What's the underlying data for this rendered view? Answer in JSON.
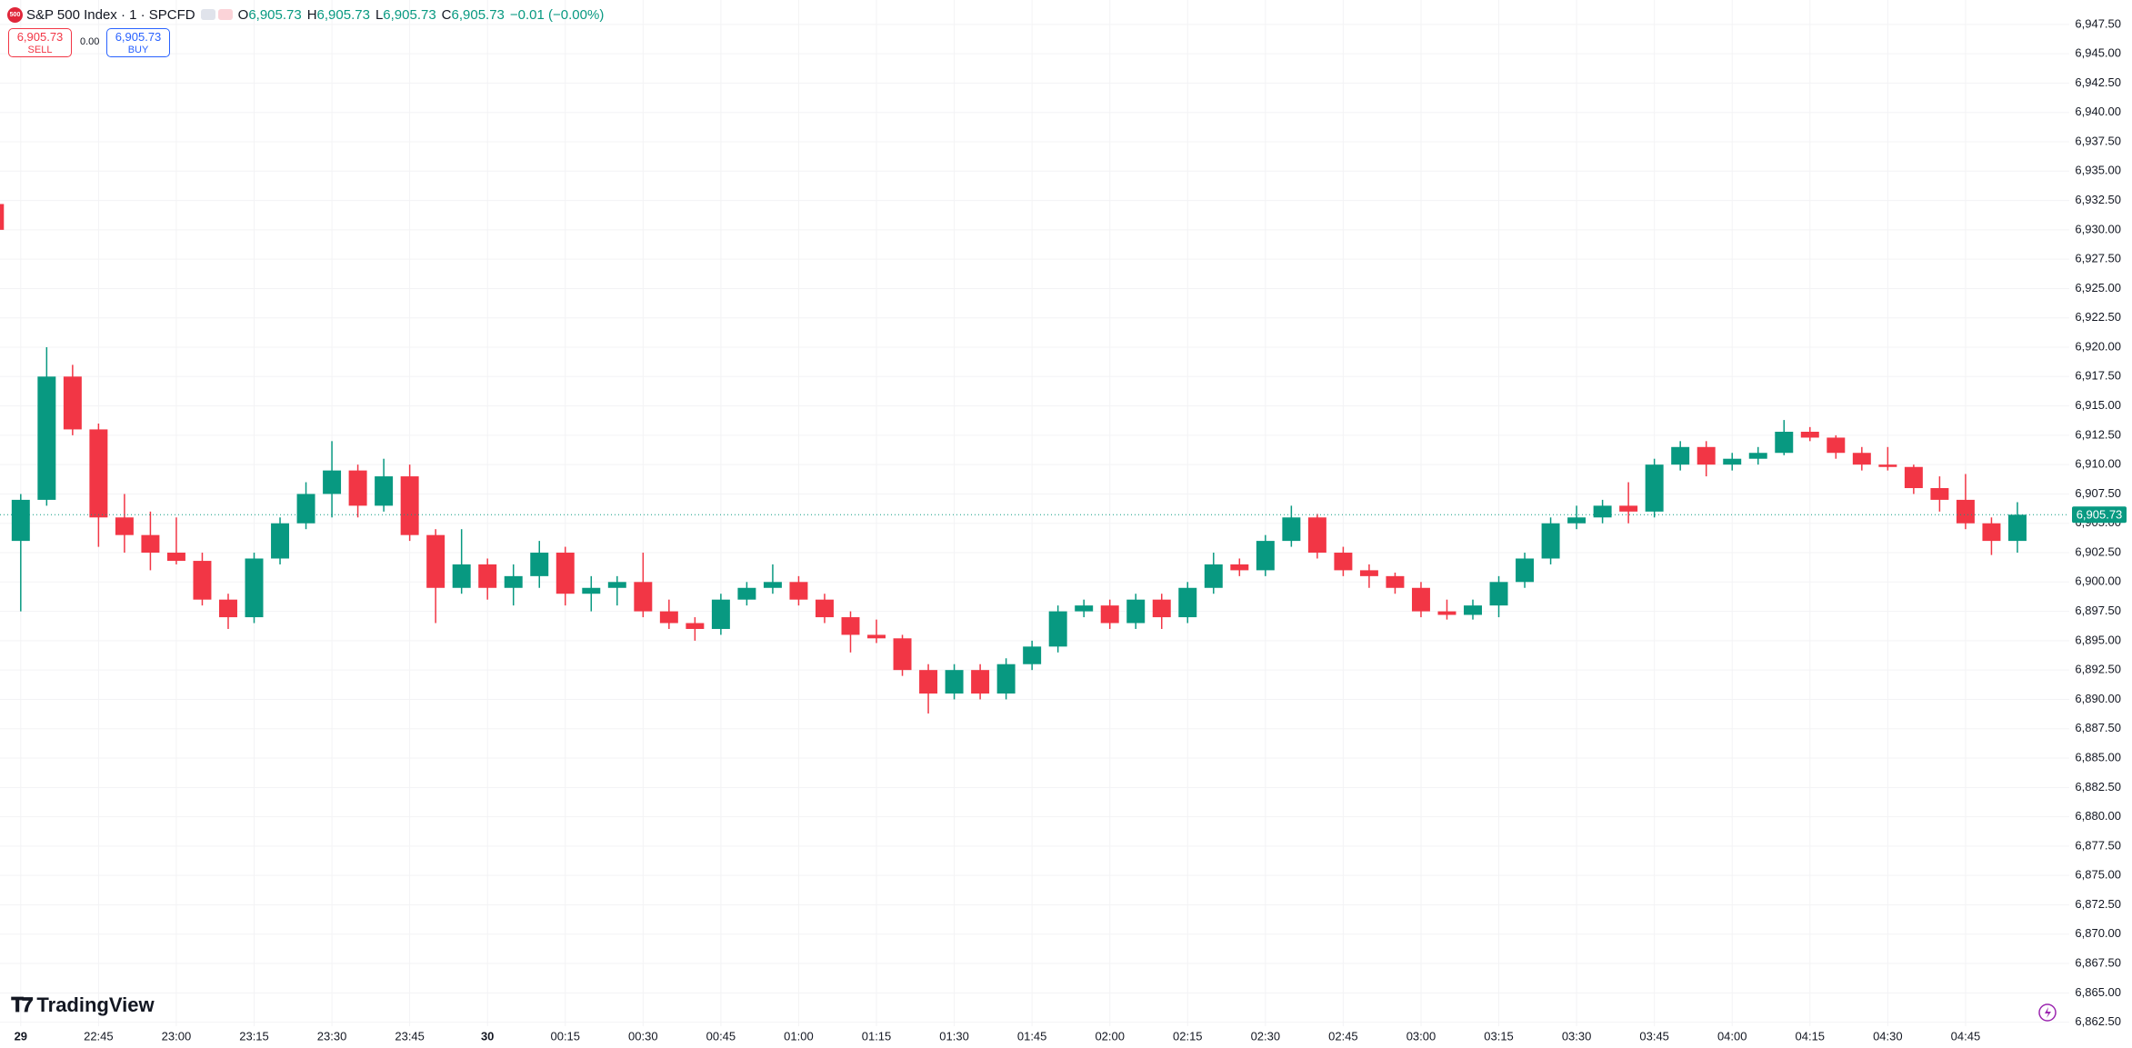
{
  "chart_data": {
    "type": "candlestick",
    "title": "S&P 500 Index · 1 · SPCFD",
    "ohlc_legend": [
      {
        "key": "O",
        "value": "6,905.73"
      },
      {
        "key": "H",
        "value": "6,905.73"
      },
      {
        "key": "L",
        "value": "6,905.73"
      },
      {
        "key": "C",
        "value": "6,905.73"
      }
    ],
    "change": "−0.01 (−0.00%)",
    "sell": {
      "price": "6,905.73",
      "label": "SELL"
    },
    "spread": "0.00",
    "buy": {
      "price": "6,905.73",
      "label": "BUY"
    },
    "brand": "TradingView",
    "up_color": "#089981",
    "down_color": "#f23645",
    "grid": true,
    "x": [
      "22:25",
      "22:30",
      "22:35",
      "22:40",
      "22:45",
      "22:50",
      "22:55",
      "23:00",
      "23:05",
      "23:10",
      "23:15",
      "23:20",
      "23:25",
      "23:30",
      "23:35",
      "23:40",
      "23:45",
      "23:50",
      "23:55",
      "00:00",
      "00:05",
      "00:10",
      "00:15",
      "00:20",
      "00:25",
      "00:30",
      "00:35",
      "00:40",
      "00:45",
      "00:50",
      "00:55",
      "01:00",
      "01:05",
      "01:10",
      "01:15",
      "01:20",
      "01:25",
      "01:30",
      "01:35",
      "01:40",
      "01:45",
      "01:50",
      "01:55",
      "02:00",
      "02:05",
      "02:10",
      "02:15",
      "02:20",
      "02:25",
      "02:30",
      "02:35",
      "02:40",
      "02:45",
      "02:50",
      "02:55",
      "03:00",
      "03:05",
      "03:10",
      "03:15",
      "03:20",
      "03:25",
      "03:30",
      "03:35",
      "03:40",
      "03:45",
      "03:50",
      "03:55",
      "04:00",
      "04:05",
      "04:10",
      "04:15",
      "04:20",
      "04:25",
      "04:30",
      "04:35",
      "04:40",
      "04:45",
      "04:50",
      "04:55"
    ],
    "open": [
      6932.2,
      6903.5,
      6907,
      6917.5,
      6913,
      6905.5,
      6904,
      6902.5,
      6901.8,
      6898.5,
      6897,
      6902,
      6905,
      6907.5,
      6909.5,
      6906.5,
      6909,
      6904,
      6899.5,
      6901.5,
      6899.5,
      6900.5,
      6902.5,
      6899,
      6899.5,
      6900,
      6897.5,
      6896.5,
      6896,
      6898.5,
      6899.5,
      6900,
      6898.5,
      6897,
      6895.5,
      6895.2,
      6892.5,
      6890.5,
      6892.5,
      6890.5,
      6893,
      6894.5,
      6897.5,
      6898,
      6896.5,
      6898.5,
      6897,
      6899.5,
      6901.5,
      6901,
      6903.5,
      6905.5,
      6902.5,
      6901,
      6900.5,
      6899.5,
      6897.5,
      6897.2,
      6898,
      6900,
      6902,
      6905,
      6905.5,
      6906.5,
      6906,
      6910,
      6911.5,
      6910,
      6910.5,
      6911,
      6912.8,
      6912.3,
      6911,
      6910,
      6909.8,
      6908,
      6907,
      6905,
      6903.5
    ],
    "high": [
      6932.5,
      6907.5,
      6920,
      6918.5,
      6913.5,
      6907.5,
      6906,
      6905.5,
      6902.5,
      6899,
      6902.5,
      6905.5,
      6908.5,
      6912,
      6910,
      6910.5,
      6910,
      6904.5,
      6904.5,
      6902,
      6901.5,
      6903.5,
      6903,
      6900.5,
      6900.5,
      6902.5,
      6898.5,
      6897,
      6899,
      6900,
      6901.5,
      6900.5,
      6899,
      6897.5,
      6896.8,
      6895.5,
      6893,
      6893,
      6893,
      6893.5,
      6895,
      6898,
      6898.5,
      6898.5,
      6899,
      6899,
      6900,
      6902.5,
      6902,
      6904,
      6906.5,
      6905.8,
      6903,
      6901.5,
      6900.8,
      6900,
      6898.5,
      6898.5,
      6900.5,
      6902.5,
      6905.5,
      6906.5,
      6907,
      6908.5,
      6910.5,
      6912,
      6912,
      6911,
      6911.5,
      6913.8,
      6913.2,
      6912.5,
      6911.5,
      6911.5,
      6910,
      6909,
      6909.2,
      6905.5,
      6906.8
    ],
    "low": [
      6929.5,
      6897.5,
      6906.5,
      6912.5,
      6903,
      6902.5,
      6901,
      6901.5,
      6898,
      6896,
      6896.5,
      6901.5,
      6904.5,
      6905.5,
      6905.5,
      6906,
      6903.5,
      6896.5,
      6899,
      6898.5,
      6898,
      6899.5,
      6898,
      6897.5,
      6898,
      6897,
      6896,
      6895,
      6895.5,
      6898,
      6899,
      6898,
      6896.5,
      6894,
      6894.8,
      6892,
      6888.8,
      6890,
      6890,
      6890,
      6892.5,
      6894,
      6897,
      6896,
      6896,
      6896,
      6896.5,
      6899,
      6900.5,
      6900.5,
      6903,
      6902,
      6900.5,
      6899.5,
      6899,
      6897,
      6896.8,
      6896.8,
      6897,
      6899.5,
      6901.5,
      6904.5,
      6905,
      6905,
      6905.5,
      6909.5,
      6909,
      6909.5,
      6910,
      6910.8,
      6912,
      6910.5,
      6909.5,
      6909.5,
      6907.5,
      6906,
      6904.5,
      6902.3,
      6902.5
    ],
    "close": [
      6930,
      6907,
      6917.5,
      6913,
      6905.5,
      6904,
      6902.5,
      6901.8,
      6898.5,
      6897,
      6902,
      6905,
      6907.5,
      6909.5,
      6906.5,
      6909,
      6904,
      6899.5,
      6901.5,
      6899.5,
      6900.5,
      6902.5,
      6899,
      6899.5,
      6900,
      6897.5,
      6896.5,
      6896,
      6898.5,
      6899.5,
      6900,
      6898.5,
      6897,
      6895.5,
      6895.2,
      6892.5,
      6890.5,
      6892.5,
      6890.5,
      6893,
      6894.5,
      6897.5,
      6898,
      6896.5,
      6898.5,
      6897,
      6899.5,
      6901.5,
      6901,
      6903.5,
      6905.5,
      6902.5,
      6901,
      6900.5,
      6899.5,
      6897.5,
      6897.2,
      6898,
      6900,
      6902,
      6905,
      6905.5,
      6906.5,
      6906,
      6910,
      6911.5,
      6910,
      6910.5,
      6911,
      6912.8,
      6912.3,
      6911,
      6910,
      6909.8,
      6908,
      6907,
      6905,
      6903.5,
      6905.73
    ],
    "last_price": {
      "value": 6905.73,
      "label": "6,905.73"
    },
    "xlim": [
      "22:26",
      "05:05"
    ],
    "xticks": [
      {
        "value": "22:30",
        "label": "29"
      },
      "22:45",
      "23:00",
      "23:15",
      "23:30",
      "23:45",
      {
        "value": "00:00",
        "label": "30"
      },
      "00:15",
      "00:30",
      "00:45",
      "01:00",
      "01:15",
      "01:30",
      "01:45",
      "02:00",
      "02:15",
      "02:30",
      "02:45",
      "03:00",
      "03:15",
      "03:30",
      "03:45",
      "04:00",
      "04:15",
      "04:30",
      "04:45"
    ],
    "ylim": [
      6862.16,
      6949.58
    ],
    "yticks": [
      {
        "value": 6862.5,
        "label": "6,862.50"
      },
      {
        "value": 6865,
        "label": "6,865.00"
      },
      {
        "value": 6867.5,
        "label": "6,867.50"
      },
      {
        "value": 6870,
        "label": "6,870.00"
      },
      {
        "value": 6872.5,
        "label": "6,872.50"
      },
      {
        "value": 6875,
        "label": "6,875.00"
      },
      {
        "value": 6877.5,
        "label": "6,877.50"
      },
      {
        "value": 6880,
        "label": "6,880.00"
      },
      {
        "value": 6882.5,
        "label": "6,882.50"
      },
      {
        "value": 6885,
        "label": "6,885.00"
      },
      {
        "value": 6887.5,
        "label": "6,887.50"
      },
      {
        "value": 6890,
        "label": "6,890.00"
      },
      {
        "value": 6892.5,
        "label": "6,892.50"
      },
      {
        "value": 6895,
        "label": "6,895.00"
      },
      {
        "value": 6897.5,
        "label": "6,897.50"
      },
      {
        "value": 6900,
        "label": "6,900.00"
      },
      {
        "value": 6902.5,
        "label": "6,902.50"
      },
      {
        "value": 6905,
        "label": "6,905.00"
      },
      {
        "value": 6907.5,
        "label": "6,907.50"
      },
      {
        "value": 6910,
        "label": "6,910.00"
      },
      {
        "value": 6912.5,
        "label": "6,912.50"
      },
      {
        "value": 6915,
        "label": "6,915.00"
      },
      {
        "value": 6917.5,
        "label": "6,917.50"
      },
      {
        "value": 6920,
        "label": "6,920.00"
      },
      {
        "value": 6922.5,
        "label": "6,922.50"
      },
      {
        "value": 6925,
        "label": "6,925.00"
      },
      {
        "value": 6927.5,
        "label": "6,927.50"
      },
      {
        "value": 6930,
        "label": "6,930.00"
      },
      {
        "value": 6932.5,
        "label": "6,932.50"
      },
      {
        "value": 6935,
        "label": "6,935.00"
      },
      {
        "value": 6937.5,
        "label": "6,937.50"
      },
      {
        "value": 6940,
        "label": "6,940.00"
      },
      {
        "value": 6942.5,
        "label": "6,942.50"
      },
      {
        "value": 6945,
        "label": "6,945.00"
      },
      {
        "value": 6947.5,
        "label": "6,947.50"
      }
    ]
  }
}
